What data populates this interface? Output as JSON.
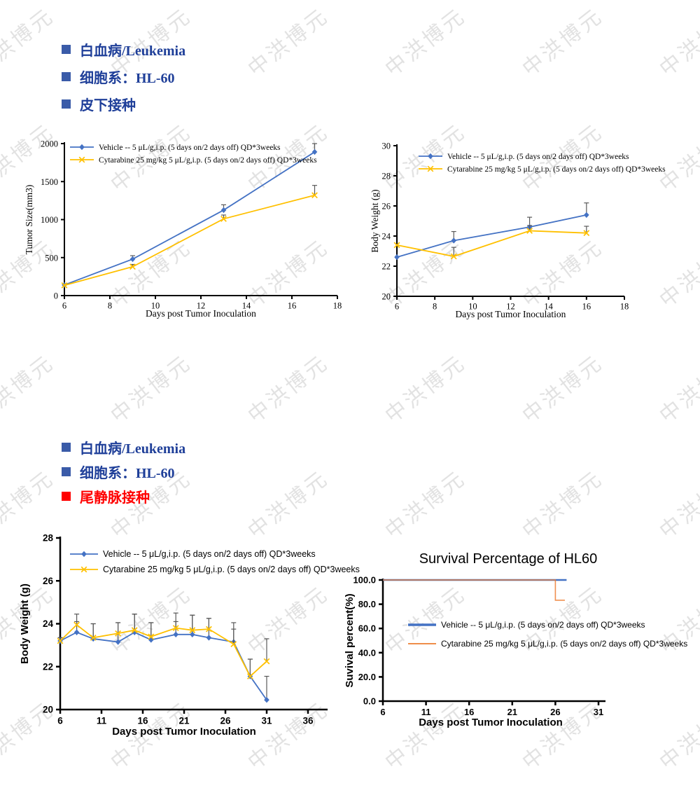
{
  "watermark": {
    "text": "中洪博元",
    "color": "#c6c6c6"
  },
  "sections": [
    {
      "name": "subcutaneous-inoculation",
      "bullets": [
        {
          "label": "白血病/Leukemia",
          "color": "#1f3f99",
          "bullet_color": "#3a5ba8"
        },
        {
          "label": "细胞系：HL-60",
          "color": "#1f3f99",
          "bullet_color": "#3a5ba8"
        },
        {
          "label": "皮下接种",
          "color": "#1f3f99",
          "bullet_color": "#3a5ba8"
        }
      ]
    },
    {
      "name": "tail-vein-inoculation",
      "bullets": [
        {
          "label": "白血病/Leukemia",
          "color": "#1f3f99",
          "bullet_color": "#3a5ba8"
        },
        {
          "label": "细胞系：HL-60",
          "color": "#1f3f99",
          "bullet_color": "#3a5ba8"
        },
        {
          "label": "尾静脉接种",
          "color": "#ff0000",
          "bullet_color": "#ff0000"
        }
      ]
    }
  ],
  "chart_data": [
    {
      "type": "line",
      "title": "",
      "xlabel": "Days post Tumor Inoculation",
      "ylabel": "Tumor Size(mm3)",
      "xlim": [
        6,
        18
      ],
      "xticks": [
        6,
        8,
        10,
        12,
        14,
        16,
        18
      ],
      "ylim": [
        0,
        2000
      ],
      "yticks": [
        0,
        500,
        1000,
        1500,
        2000
      ],
      "grid": false,
      "legend_pos": "inside-top-left",
      "x": [
        6,
        9,
        13,
        17
      ],
      "series": [
        {
          "name": "Vehicle -- 5 μL/g,i.p. (5 days on/2 days off) QD*3weeks",
          "color": "#4472C4",
          "marker": "diamond",
          "values": [
            140,
            480,
            1125,
            1890
          ],
          "err": [
            0,
            45,
            70,
            110
          ]
        },
        {
          "name": "Cytarabine 25 mg/kg 5 μL/g,i.p.  (5 days on/2 days off) QD*3weeks",
          "color": "#FFC000",
          "marker": "x",
          "values": [
            135,
            380,
            1010,
            1320
          ],
          "err": [
            0,
            30,
            50,
            130
          ]
        }
      ]
    },
    {
      "type": "line",
      "title": "",
      "xlabel": "Days post Tumor Inoculation",
      "ylabel": "Body Weight (g)",
      "xlim": [
        6,
        18
      ],
      "xticks": [
        6,
        8,
        10,
        12,
        14,
        16,
        18
      ],
      "ylim": [
        20,
        30
      ],
      "yticks": [
        20,
        22,
        24,
        26,
        28,
        30
      ],
      "grid": false,
      "legend_pos": "inside-top-left",
      "x": [
        6,
        9,
        13,
        16
      ],
      "series": [
        {
          "name": "Vehicle -- 5 μL/g,i.p. (5 days on/2 days off) QD*3weeks",
          "color": "#4472C4",
          "marker": "diamond",
          "values": [
            22.6,
            23.7,
            24.6,
            25.4
          ],
          "err": [
            0,
            0.6,
            0.65,
            0.8
          ]
        },
        {
          "name": "Cytarabine 25 mg/kg 5 μL/g,i.p.  (5 days on/2 days off) QD*3weeks",
          "color": "#FFC000",
          "marker": "x",
          "values": [
            23.4,
            22.65,
            24.35,
            24.2
          ],
          "err": [
            0,
            0.6,
            0.35,
            0.45
          ]
        }
      ]
    },
    {
      "type": "line",
      "title": "",
      "xlabel": "Days post Tumor Inoculation",
      "ylabel": "Body Weight (g)",
      "xlim": [
        6,
        36
      ],
      "xticks": [
        6,
        11,
        16,
        21,
        26,
        31,
        36
      ],
      "ylim": [
        20,
        28
      ],
      "yticks": [
        20,
        22,
        24,
        26,
        28
      ],
      "grid": false,
      "legend_pos": "inside-top-left",
      "x": [
        6,
        8,
        10,
        13,
        15,
        17,
        20,
        22,
        24,
        27,
        29,
        31
      ],
      "series": [
        {
          "name": "Vehicle -- 5 μL/g,i.p. (5 days on/2 days off) QD*3weeks",
          "color": "#4472C4",
          "marker": "diamond",
          "values": [
            23.2,
            23.6,
            23.3,
            23.15,
            23.6,
            23.25,
            23.5,
            23.5,
            23.35,
            23.15,
            21.55,
            20.45
          ],
          "err": [
            0.15,
            0.5,
            0.7,
            0.9,
            0.85,
            0.8,
            0.6,
            0.9,
            0.9,
            0.9,
            0.8,
            1.1
          ]
        },
        {
          "name": "Cytarabine 25 mg/kg 5 μL/g,i.p.  (5 days on/2 days off) QD*3weeks",
          "color": "#FFC000",
          "marker": "x",
          "values": [
            23.2,
            23.95,
            23.35,
            23.55,
            23.7,
            23.4,
            23.8,
            23.7,
            23.75,
            23.05,
            21.55,
            22.25
          ],
          "err": [
            0.15,
            0.5,
            0.65,
            0.5,
            0.75,
            0.65,
            0.7,
            0.7,
            0.5,
            0.7,
            0.8,
            1.05
          ]
        }
      ]
    },
    {
      "type": "step",
      "title": "Survival Percentage of HL60",
      "xlabel": "Days post Tumor Inoculation",
      "ylabel": "Suvival percent(%)",
      "xlim": [
        6,
        31
      ],
      "xticks": [
        6,
        11,
        16,
        21,
        26,
        31
      ],
      "ylim": [
        0,
        100
      ],
      "yticks": [
        0,
        20,
        40,
        60,
        80,
        100
      ],
      "ytick_labels": [
        "0.0",
        "20.0",
        "40.0",
        "60.0",
        "80.0",
        "100.0"
      ],
      "grid": false,
      "legend_pos": "inside-middle",
      "series": [
        {
          "name": "Vehicle -- 5 μL/g,i.p. (5 days on/2 days off) QD*3weeks",
          "color": "#4472C4",
          "width": 2.6,
          "legend_width": 3.6,
          "points": [
            [
              6,
              100
            ],
            [
              27.3,
              100
            ]
          ]
        },
        {
          "name": "Cytarabine 25 mg/kg 5 μL/g,i.p.  (5 days on/2 days off) QD*3weeks",
          "color": "#ED7D31",
          "width": 1.6,
          "legend_width": 1.8,
          "opacity": 0.85,
          "points": [
            [
              6,
              100
            ],
            [
              26,
              100
            ],
            [
              26,
              83.3
            ],
            [
              27.1,
              83.3
            ]
          ]
        }
      ]
    }
  ]
}
